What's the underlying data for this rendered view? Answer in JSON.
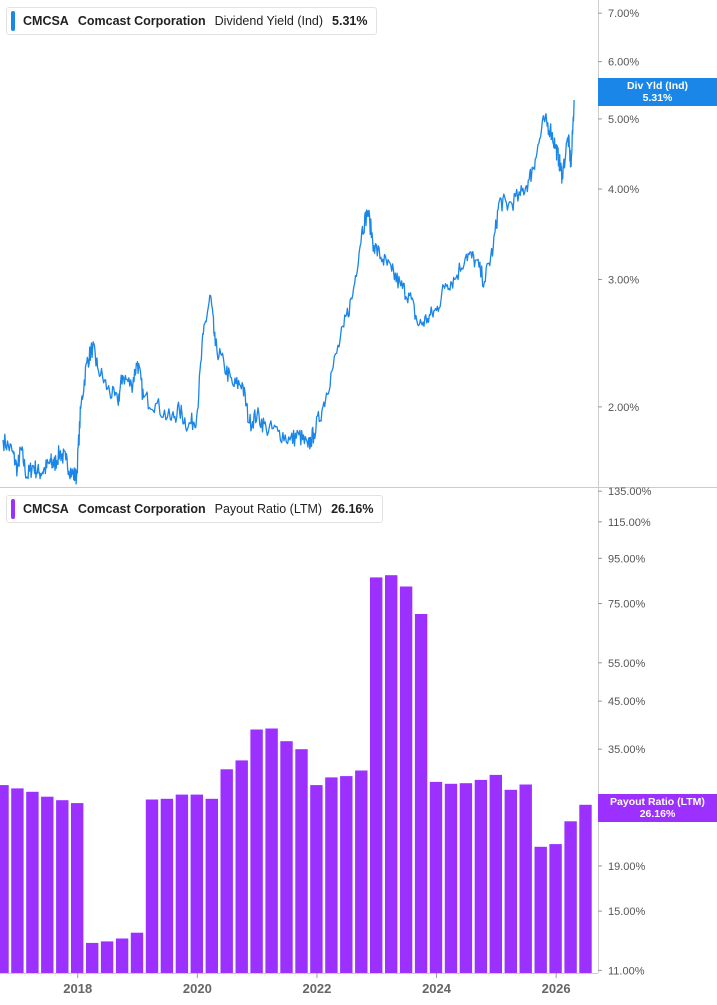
{
  "top_legend": {
    "ticker": "CMCSA",
    "company": "Comcast Corporation",
    "metric": "Dividend Yield (Ind)",
    "value": "5.31%"
  },
  "bottom_legend": {
    "ticker": "CMCSA",
    "company": "Comcast Corporation",
    "metric": "Payout Ratio (LTM)",
    "value": "26.16%"
  },
  "top_tag": {
    "label": "Div Yld (Ind)",
    "value": "5.31%"
  },
  "bottom_tag": {
    "label": "Payout Ratio (LTM)",
    "value": "26.16%"
  },
  "colors": {
    "line": "#1a86e8",
    "bar": "#9b30ff",
    "axis": "#cccccc",
    "grid": "#e6e6e6"
  },
  "chart_data": [
    {
      "type": "line",
      "scale": "log",
      "series": [
        {
          "name": "Dividend Yield (Ind)",
          "points": [
            [
              2016.75,
              1.8
            ],
            [
              2016.9,
              1.74
            ],
            [
              2016.99,
              1.64
            ],
            [
              2017.05,
              1.75
            ],
            [
              2017.15,
              1.6
            ],
            [
              2017.25,
              1.66
            ],
            [
              2017.35,
              1.62
            ],
            [
              2017.45,
              1.64
            ],
            [
              2017.55,
              1.68
            ],
            [
              2017.6,
              1.66
            ],
            [
              2017.7,
              1.73
            ],
            [
              2017.8,
              1.69
            ],
            [
              2017.9,
              1.62
            ],
            [
              2017.98,
              1.6
            ],
            [
              2018.05,
              1.99
            ],
            [
              2018.15,
              2.3
            ],
            [
              2018.25,
              2.42
            ],
            [
              2018.33,
              2.27
            ],
            [
              2018.5,
              2.12
            ],
            [
              2018.67,
              2.03
            ],
            [
              2018.75,
              2.21
            ],
            [
              2018.9,
              2.14
            ],
            [
              2019.0,
              2.31
            ],
            [
              2019.1,
              2.06
            ],
            [
              2019.3,
              2.02
            ],
            [
              2019.55,
              1.92
            ],
            [
              2019.7,
              1.98
            ],
            [
              2019.85,
              1.88
            ],
            [
              2019.99,
              1.94
            ],
            [
              2020.1,
              2.52
            ],
            [
              2020.22,
              2.85
            ],
            [
              2020.3,
              2.43
            ],
            [
              2020.45,
              2.28
            ],
            [
              2020.6,
              2.14
            ],
            [
              2020.75,
              2.16
            ],
            [
              2020.87,
              1.9
            ],
            [
              2021.0,
              1.95
            ],
            [
              2021.15,
              1.87
            ],
            [
              2021.35,
              1.85
            ],
            [
              2021.55,
              1.8
            ],
            [
              2021.7,
              1.83
            ],
            [
              2021.85,
              1.76
            ],
            [
              2021.95,
              1.84
            ],
            [
              2022.1,
              2.0
            ],
            [
              2022.25,
              2.24
            ],
            [
              2022.45,
              2.58
            ],
            [
              2022.6,
              2.86
            ],
            [
              2022.75,
              3.5
            ],
            [
              2022.85,
              3.73
            ],
            [
              2022.95,
              3.34
            ],
            [
              2023.1,
              3.2
            ],
            [
              2023.25,
              3.08
            ],
            [
              2023.4,
              2.94
            ],
            [
              2023.55,
              2.85
            ],
            [
              2023.7,
              2.59
            ],
            [
              2023.85,
              2.65
            ],
            [
              2024.0,
              2.72
            ],
            [
              2024.15,
              2.96
            ],
            [
              2024.3,
              3.0
            ],
            [
              2024.5,
              3.25
            ],
            [
              2024.65,
              3.19
            ],
            [
              2024.8,
              2.98
            ],
            [
              2024.95,
              3.33
            ],
            [
              2025.05,
              3.85
            ],
            [
              2025.2,
              3.8
            ],
            [
              2025.4,
              3.92
            ],
            [
              2025.55,
              4.12
            ],
            [
              2025.65,
              4.4
            ],
            [
              2025.8,
              4.98
            ],
            [
              2025.9,
              4.85
            ],
            [
              2025.99,
              4.58
            ],
            [
              2026.05,
              4.38
            ],
            [
              2026.1,
              4.18
            ],
            [
              2026.2,
              4.72
            ],
            [
              2026.25,
              4.3
            ],
            [
              2026.3,
              5.31
            ]
          ]
        }
      ],
      "y_ticks": [
        "7.00%",
        "6.00%",
        "5.00%",
        "4.00%",
        "3.00%",
        "2.00%"
      ],
      "y_range": [
        1.55,
        7.3
      ]
    },
    {
      "type": "bar",
      "scale": "log",
      "series": [
        {
          "name": "Payout Ratio (LTM)",
          "points": [
            [
              2016.75,
              29.0
            ],
            [
              2017.0,
              28.5
            ],
            [
              2017.25,
              28.0
            ],
            [
              2017.5,
              27.3
            ],
            [
              2017.75,
              26.8
            ],
            [
              2018.0,
              26.4
            ],
            [
              2018.25,
              12.7
            ],
            [
              2018.5,
              12.8
            ],
            [
              2018.75,
              13.0
            ],
            [
              2019.0,
              13.4
            ],
            [
              2019.25,
              26.9
            ],
            [
              2019.5,
              27.0
            ],
            [
              2019.75,
              27.6
            ],
            [
              2020.0,
              27.6
            ],
            [
              2020.25,
              27.0
            ],
            [
              2020.5,
              31.5
            ],
            [
              2020.75,
              33.0
            ],
            [
              2021.0,
              38.8
            ],
            [
              2021.25,
              39.0
            ],
            [
              2021.5,
              36.5
            ],
            [
              2021.75,
              35.0
            ],
            [
              2022.0,
              29.0
            ],
            [
              2022.25,
              30.2
            ],
            [
              2022.5,
              30.4
            ],
            [
              2022.75,
              31.3
            ],
            [
              2023.0,
              86.0
            ],
            [
              2023.25,
              87.0
            ],
            [
              2023.5,
              82.0
            ],
            [
              2023.75,
              71.0
            ],
            [
              2024.0,
              29.5
            ],
            [
              2024.25,
              29.2
            ],
            [
              2024.5,
              29.3
            ],
            [
              2024.75,
              29.8
            ],
            [
              2025.0,
              30.6
            ],
            [
              2025.25,
              28.3
            ],
            [
              2025.5,
              29.1
            ],
            [
              2025.75,
              21.0
            ],
            [
              2026.0,
              21.3
            ],
            [
              2026.25,
              24.0
            ],
            [
              2026.5,
              26.16
            ]
          ]
        }
      ],
      "y_ticks": [
        "135.00%",
        "115.00%",
        "95.00%",
        "75.00%",
        "55.00%",
        "45.00%",
        "35.00%",
        "19.00%",
        "15.00%",
        "11.00%"
      ],
      "y_range": [
        10.85,
        138
      ]
    }
  ],
  "x_axis": {
    "ticks": [
      "2018",
      "2020",
      "2022",
      "2024",
      "2026"
    ],
    "range": [
      2016.7,
      2026.7
    ]
  }
}
